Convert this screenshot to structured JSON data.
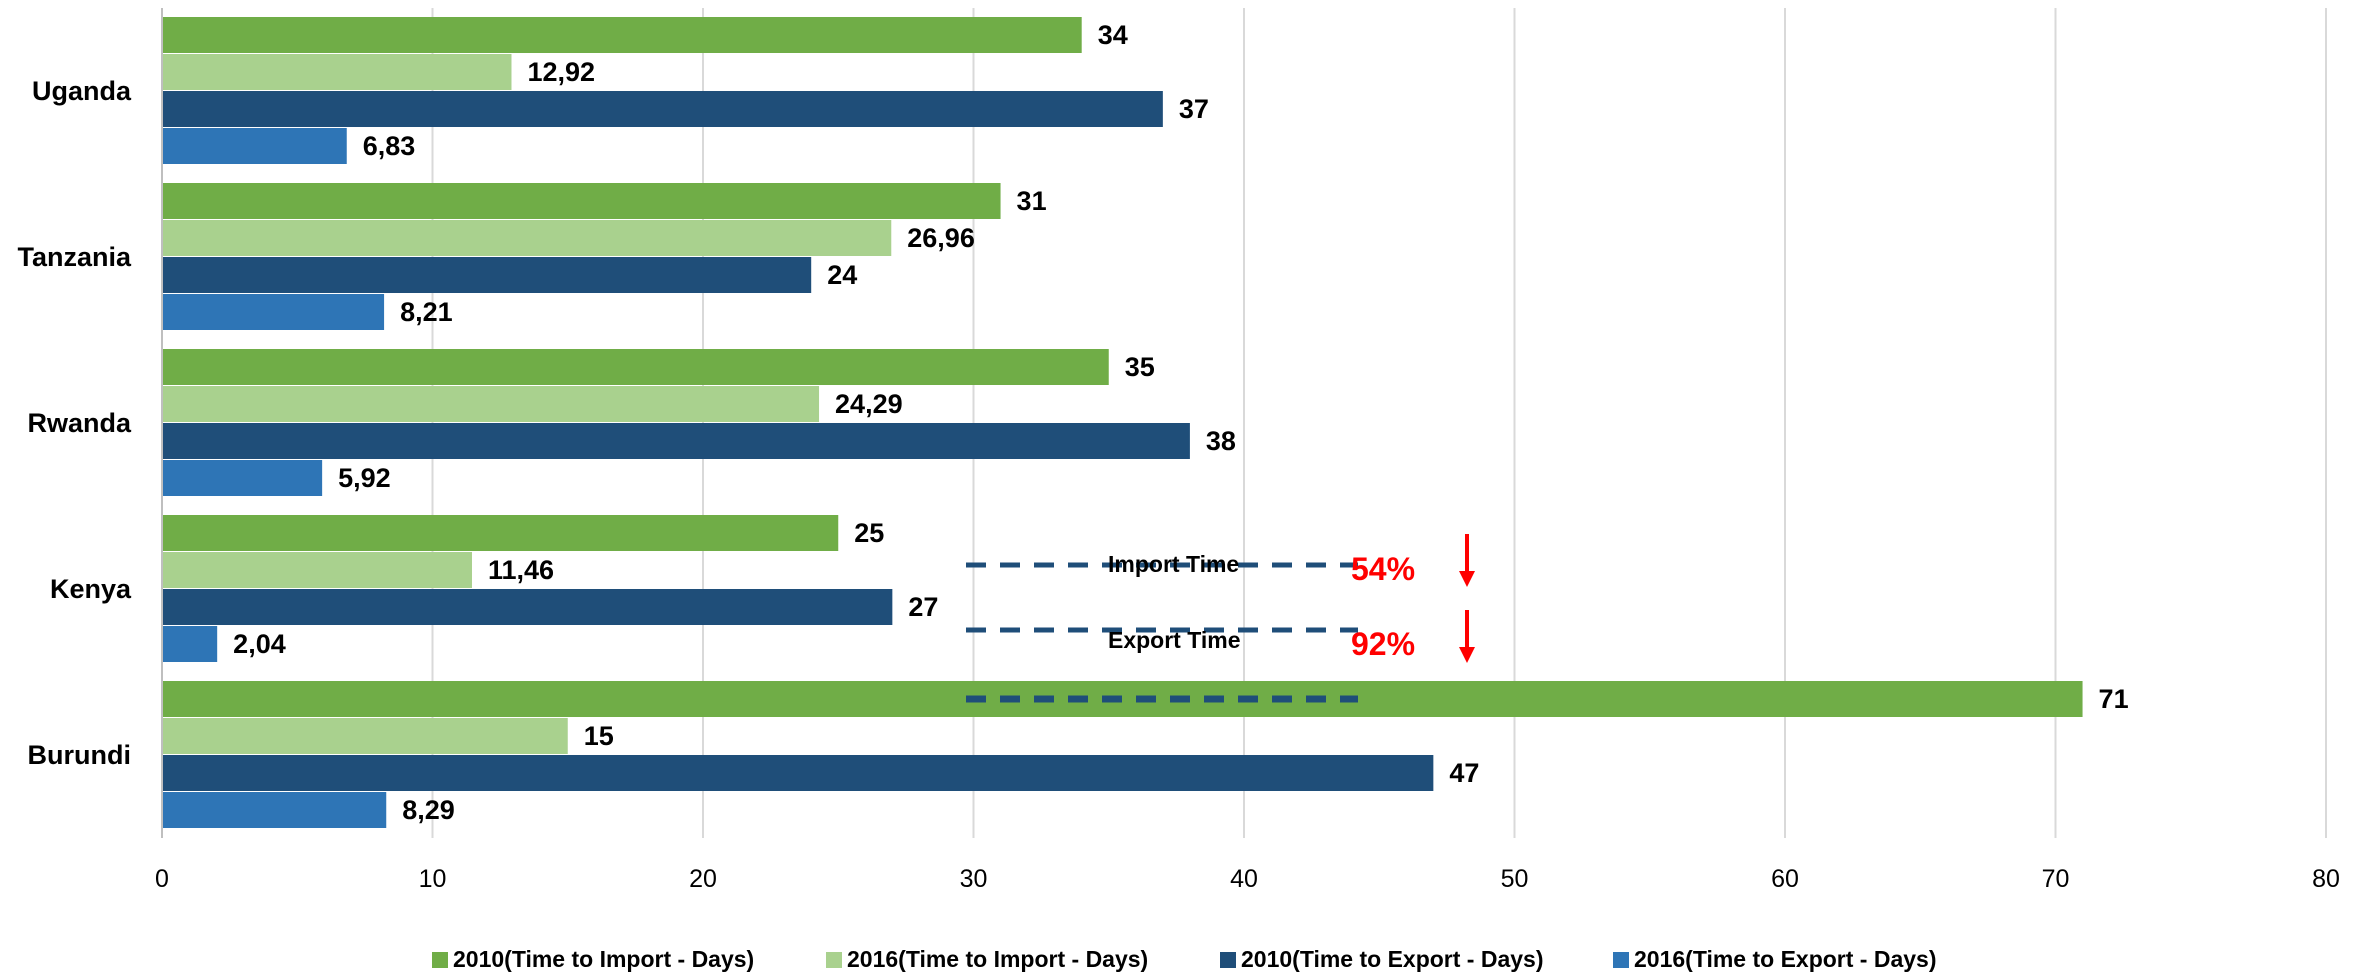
{
  "chart_data": {
    "type": "bar",
    "orientation": "horizontal",
    "categories": [
      "Uganda",
      "Tanzania",
      "Rwanda",
      "Kenya",
      "Burundi"
    ],
    "series": [
      {
        "name": "2010(Time to Import - Days)",
        "color": "#70AD47",
        "values": [
          34,
          31,
          35,
          25,
          71
        ],
        "labels": [
          "34",
          "31",
          "35",
          "25",
          "71"
        ]
      },
      {
        "name": "2016(Time to Import - Days)",
        "color": "#A9D18E",
        "values": [
          12.92,
          26.96,
          24.29,
          11.46,
          15
        ],
        "labels": [
          "12,92",
          "26,96",
          "24,29",
          "11,46",
          "15"
        ]
      },
      {
        "name": "2010(Time to Export - Days)",
        "color": "#1F4E79",
        "values": [
          37,
          24,
          38,
          27,
          47
        ],
        "labels": [
          "37",
          "24",
          "38",
          "27",
          "47"
        ]
      },
      {
        "name": "2016(Time to Export - Days)",
        "color": "#2E75B6",
        "values": [
          6.83,
          8.21,
          5.92,
          2.04,
          8.29
        ],
        "labels": [
          "6,83",
          "8,21",
          "5,92",
          "2,04",
          "8,29"
        ]
      }
    ],
    "xlim": [
      0,
      80
    ],
    "xticks": [
      0,
      10,
      20,
      30,
      40,
      50,
      60,
      70,
      80
    ],
    "grid": "vertical",
    "legend": "bottom",
    "annotations": [
      {
        "text": "Import Time",
        "value": "54%",
        "color": "#FF0000"
      },
      {
        "text": "Export Time",
        "value": "92%",
        "color": "#FF0000"
      }
    ]
  }
}
